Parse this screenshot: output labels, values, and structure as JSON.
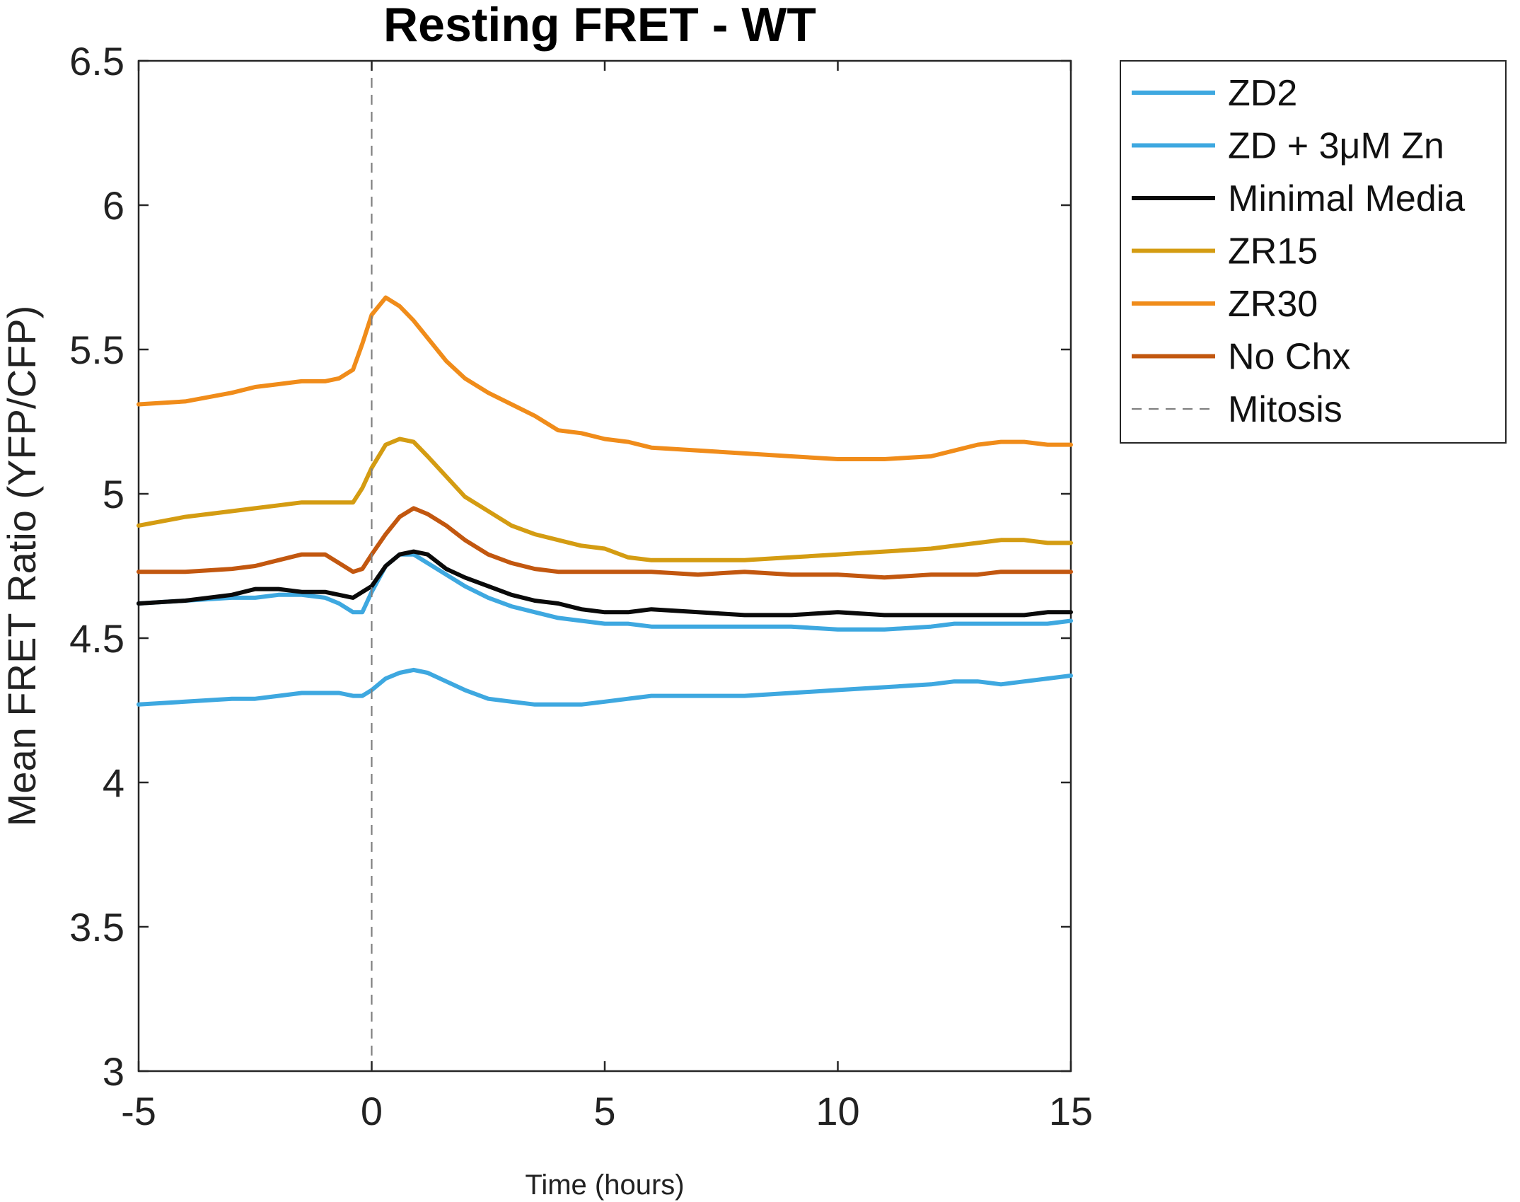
{
  "chart_data": {
    "type": "line",
    "title": "Resting FRET - WT",
    "xlabel": "Time (hours)",
    "ylabel": "Mean FRET Ratio (YFP/CFP)",
    "xlim": [
      -5,
      15
    ],
    "ylim": [
      3,
      6.5
    ],
    "xticks": [
      "-5",
      "0",
      "5",
      "10",
      "15"
    ],
    "yticks": [
      "3",
      "3.5",
      "4",
      "4.5",
      "5",
      "5.5",
      "6",
      "6.5"
    ],
    "grid": false,
    "legend_position": "outside-right",
    "vline": {
      "x": 0,
      "label": "Mitosis",
      "color": "#808080",
      "style": "dashed"
    },
    "series": [
      {
        "name": "ZD2",
        "color": "#3ea8e0",
        "x": [
          -5,
          -4,
          -3,
          -2.5,
          -2,
          -1.5,
          -1,
          -0.7,
          -0.4,
          -0.2,
          0,
          0.3,
          0.6,
          0.9,
          1.2,
          1.6,
          2,
          2.5,
          3,
          3.5,
          4,
          4.5,
          5,
          5.5,
          6,
          7,
          8,
          9,
          10,
          11,
          12,
          12.5,
          13,
          13.5,
          14,
          14.5,
          15
        ],
        "y": [
          4.27,
          4.28,
          4.29,
          4.29,
          4.3,
          4.31,
          4.31,
          4.31,
          4.3,
          4.3,
          4.32,
          4.36,
          4.38,
          4.39,
          4.38,
          4.35,
          4.32,
          4.29,
          4.28,
          4.27,
          4.27,
          4.27,
          4.28,
          4.29,
          4.3,
          4.3,
          4.3,
          4.31,
          4.32,
          4.33,
          4.34,
          4.35,
          4.35,
          4.34,
          4.35,
          4.36,
          4.37
        ]
      },
      {
        "name": "ZD + 3μM Zn",
        "color": "#3ea8e0",
        "x": [
          -5,
          -4,
          -3,
          -2.5,
          -2,
          -1.5,
          -1,
          -0.7,
          -0.4,
          -0.2,
          0,
          0.3,
          0.6,
          0.9,
          1.2,
          1.6,
          2,
          2.5,
          3,
          3.5,
          4,
          4.5,
          5,
          5.5,
          6,
          7,
          8,
          9,
          10,
          11,
          12,
          12.5,
          13,
          13.5,
          14,
          14.5,
          15
        ],
        "y": [
          4.62,
          4.63,
          4.64,
          4.64,
          4.65,
          4.65,
          4.64,
          4.62,
          4.59,
          4.59,
          4.66,
          4.75,
          4.79,
          4.79,
          4.76,
          4.72,
          4.68,
          4.64,
          4.61,
          4.59,
          4.57,
          4.56,
          4.55,
          4.55,
          4.54,
          4.54,
          4.54,
          4.54,
          4.53,
          4.53,
          4.54,
          4.55,
          4.55,
          4.55,
          4.55,
          4.55,
          4.56
        ]
      },
      {
        "name": "Minimal Media",
        "color": "#0a0a0a",
        "x": [
          -5,
          -4,
          -3,
          -2.5,
          -2,
          -1.5,
          -1,
          -0.7,
          -0.4,
          -0.2,
          0,
          0.3,
          0.6,
          0.9,
          1.2,
          1.6,
          2,
          2.5,
          3,
          3.5,
          4,
          4.5,
          5,
          5.5,
          6,
          7,
          8,
          9,
          10,
          11,
          12,
          12.5,
          13,
          13.5,
          14,
          14.5,
          15
        ],
        "y": [
          4.62,
          4.63,
          4.65,
          4.67,
          4.67,
          4.66,
          4.66,
          4.65,
          4.64,
          4.66,
          4.68,
          4.75,
          4.79,
          4.8,
          4.79,
          4.74,
          4.71,
          4.68,
          4.65,
          4.63,
          4.62,
          4.6,
          4.59,
          4.59,
          4.6,
          4.59,
          4.58,
          4.58,
          4.59,
          4.58,
          4.58,
          4.58,
          4.58,
          4.58,
          4.58,
          4.59,
          4.59
        ]
      },
      {
        "name": "ZR15",
        "color": "#d49c12",
        "x": [
          -5,
          -4,
          -3,
          -2.5,
          -2,
          -1.5,
          -1,
          -0.7,
          -0.4,
          -0.2,
          0,
          0.3,
          0.6,
          0.9,
          1.2,
          1.6,
          2,
          2.5,
          3,
          3.5,
          4,
          4.5,
          5,
          5.5,
          6,
          7,
          8,
          9,
          10,
          11,
          12,
          12.5,
          13,
          13.5,
          14,
          14.5,
          15
        ],
        "y": [
          4.89,
          4.92,
          4.94,
          4.95,
          4.96,
          4.97,
          4.97,
          4.97,
          4.97,
          5.02,
          5.09,
          5.17,
          5.19,
          5.18,
          5.13,
          5.06,
          4.99,
          4.94,
          4.89,
          4.86,
          4.84,
          4.82,
          4.81,
          4.78,
          4.77,
          4.77,
          4.77,
          4.78,
          4.79,
          4.8,
          4.81,
          4.82,
          4.83,
          4.84,
          4.84,
          4.83,
          4.83
        ]
      },
      {
        "name": "ZR30",
        "color": "#f08c1a",
        "x": [
          -5,
          -4,
          -3,
          -2.5,
          -2,
          -1.5,
          -1,
          -0.7,
          -0.4,
          -0.2,
          0,
          0.3,
          0.6,
          0.9,
          1.2,
          1.6,
          2,
          2.5,
          3,
          3.5,
          4,
          4.5,
          5,
          5.5,
          6,
          7,
          8,
          9,
          10,
          11,
          12,
          12.5,
          13,
          13.5,
          14,
          14.5,
          15
        ],
        "y": [
          5.31,
          5.32,
          5.35,
          5.37,
          5.38,
          5.39,
          5.39,
          5.4,
          5.43,
          5.52,
          5.62,
          5.68,
          5.65,
          5.6,
          5.54,
          5.46,
          5.4,
          5.35,
          5.31,
          5.27,
          5.22,
          5.21,
          5.19,
          5.18,
          5.16,
          5.15,
          5.14,
          5.13,
          5.12,
          5.12,
          5.13,
          5.15,
          5.17,
          5.18,
          5.18,
          5.17,
          5.17
        ]
      },
      {
        "name": "No Chx",
        "color": "#c2570f",
        "x": [
          -5,
          -4,
          -3,
          -2.5,
          -2,
          -1.5,
          -1,
          -0.7,
          -0.4,
          -0.2,
          0,
          0.3,
          0.6,
          0.9,
          1.2,
          1.6,
          2,
          2.5,
          3,
          3.5,
          4,
          4.5,
          5,
          5.5,
          6,
          7,
          8,
          9,
          10,
          11,
          12,
          12.5,
          13,
          13.5,
          14,
          14.5,
          15
        ],
        "y": [
          4.73,
          4.73,
          4.74,
          4.75,
          4.77,
          4.79,
          4.79,
          4.76,
          4.73,
          4.74,
          4.79,
          4.86,
          4.92,
          4.95,
          4.93,
          4.89,
          4.84,
          4.79,
          4.76,
          4.74,
          4.73,
          4.73,
          4.73,
          4.73,
          4.73,
          4.72,
          4.73,
          4.72,
          4.72,
          4.71,
          4.72,
          4.72,
          4.72,
          4.73,
          4.73,
          4.73,
          4.73
        ]
      }
    ]
  }
}
